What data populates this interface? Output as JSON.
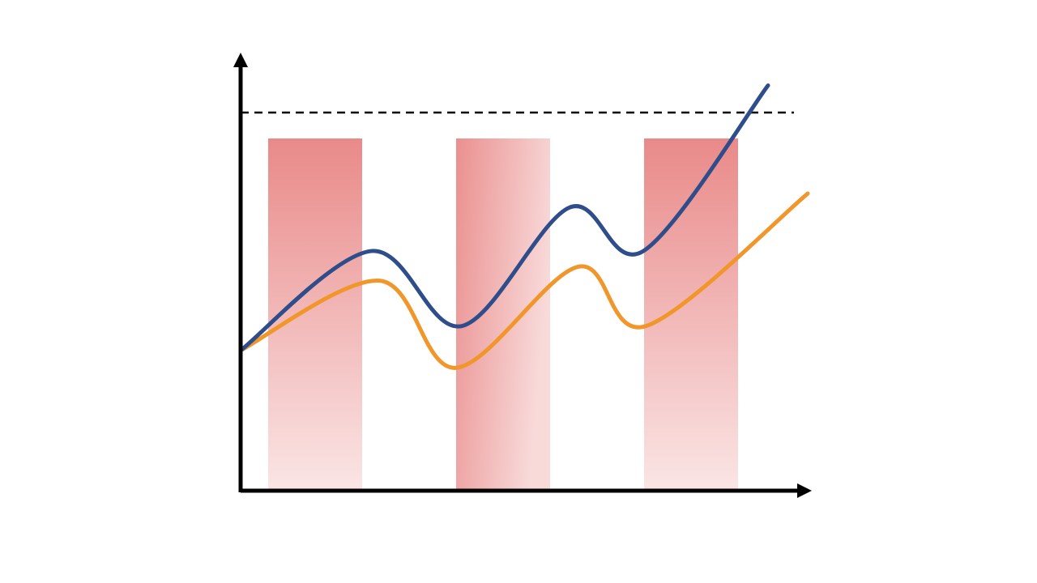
{
  "chart_data": {
    "type": "bar",
    "title": "",
    "xlabel": "",
    "ylabel": "",
    "categories": [
      "",
      "",
      ""
    ],
    "values": [
      10,
      10,
      10
    ],
    "bar_styles": [
      "vertical-gradient",
      "horizontal-gradient",
      "vertical-gradient"
    ],
    "xlim": [
      0,
      10
    ],
    "ylim": [
      0,
      10.8
    ],
    "threshold": 10.75,
    "x_axis_arrow": true,
    "y_axis_arrow": true,
    "grid": false,
    "legend": "none",
    "series": [
      {
        "type": "line",
        "color": "#2e4d8a",
        "x": [
          0,
          2.3,
          3.9,
          5.8,
          7.1,
          9.3
        ],
        "values": [
          4.0,
          6.85,
          4.7,
          8.1,
          6.85,
          11.6
        ]
      },
      {
        "type": "line",
        "color": "#f0962a",
        "x": [
          0,
          2.45,
          3.8,
          5.95,
          7.15,
          10.0
        ],
        "values": [
          4.0,
          6.0,
          3.5,
          6.4,
          4.7,
          8.5
        ]
      }
    ],
    "colors": {
      "bar": "#e98a89",
      "axis": "#000000",
      "threshold": "#000000"
    }
  }
}
